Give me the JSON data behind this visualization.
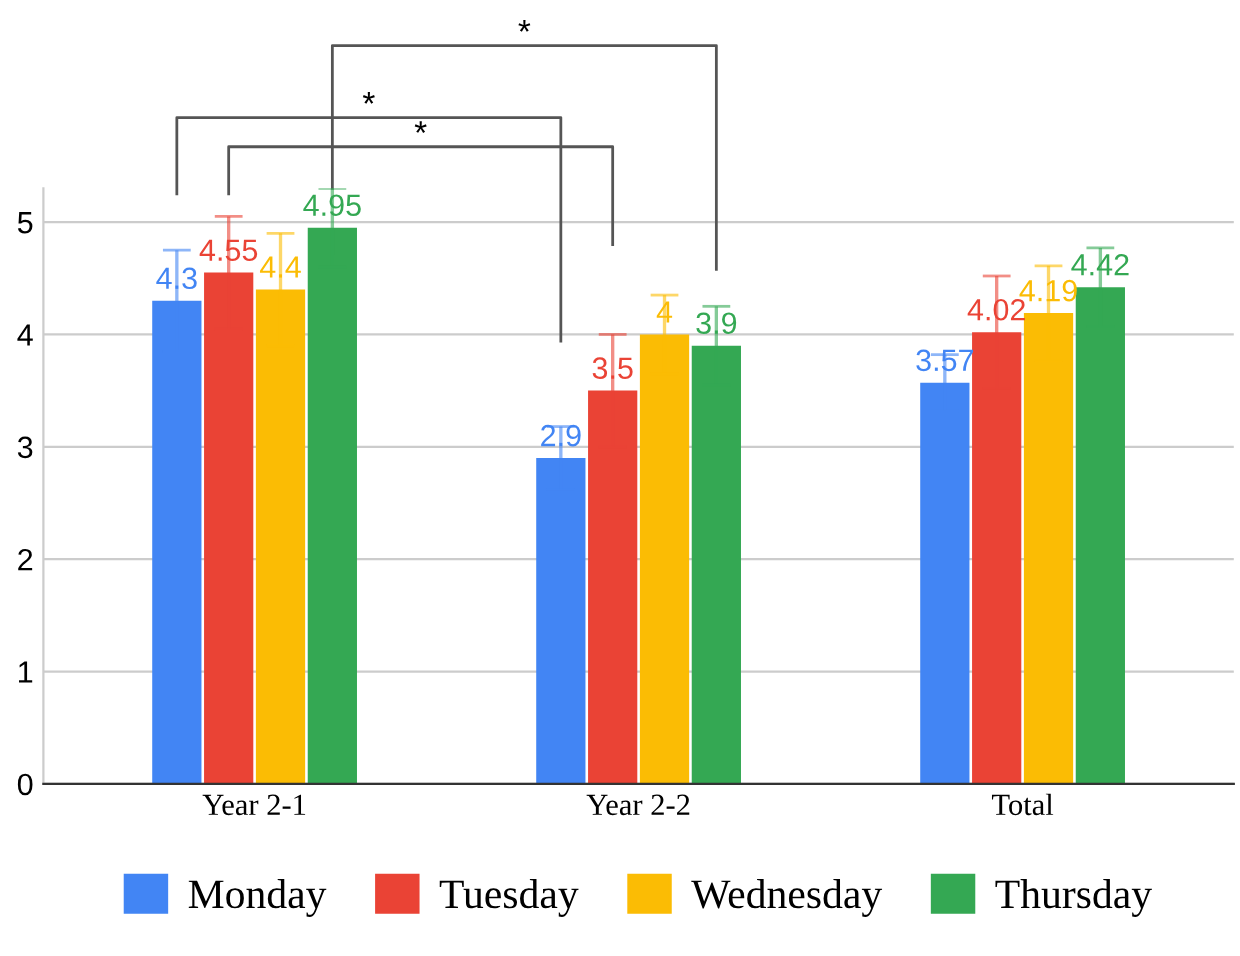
{
  "chart_data": {
    "type": "bar",
    "categories": [
      "Year 2-1",
      "Year 2-2",
      "Total"
    ],
    "series": [
      {
        "name": "Monday",
        "color": "#4285f4",
        "values": [
          4.3,
          2.9,
          3.57
        ],
        "errors": [
          0.45,
          0.28,
          0.25
        ]
      },
      {
        "name": "Tuesday",
        "color": "#ea4335",
        "values": [
          4.55,
          3.5,
          4.02
        ],
        "errors": [
          0.5,
          0.5,
          0.5
        ]
      },
      {
        "name": "Wednesday",
        "color": "#fbbc04",
        "values": [
          4.4,
          4,
          4.19
        ],
        "errors": [
          0.5,
          0.35,
          0.42
        ]
      },
      {
        "name": "Thursday",
        "color": "#34a853",
        "values": [
          4.95,
          3.9,
          4.42
        ],
        "errors": [
          0.35,
          0.35,
          0.35
        ]
      }
    ],
    "ylim": [
      0,
      5.3
    ],
    "yticks": [
      0,
      1,
      2,
      3,
      4,
      5
    ],
    "grid": "y",
    "legend": "bottom",
    "data_labels": true,
    "annotations": [
      "*",
      "*",
      "*"
    ]
  }
}
